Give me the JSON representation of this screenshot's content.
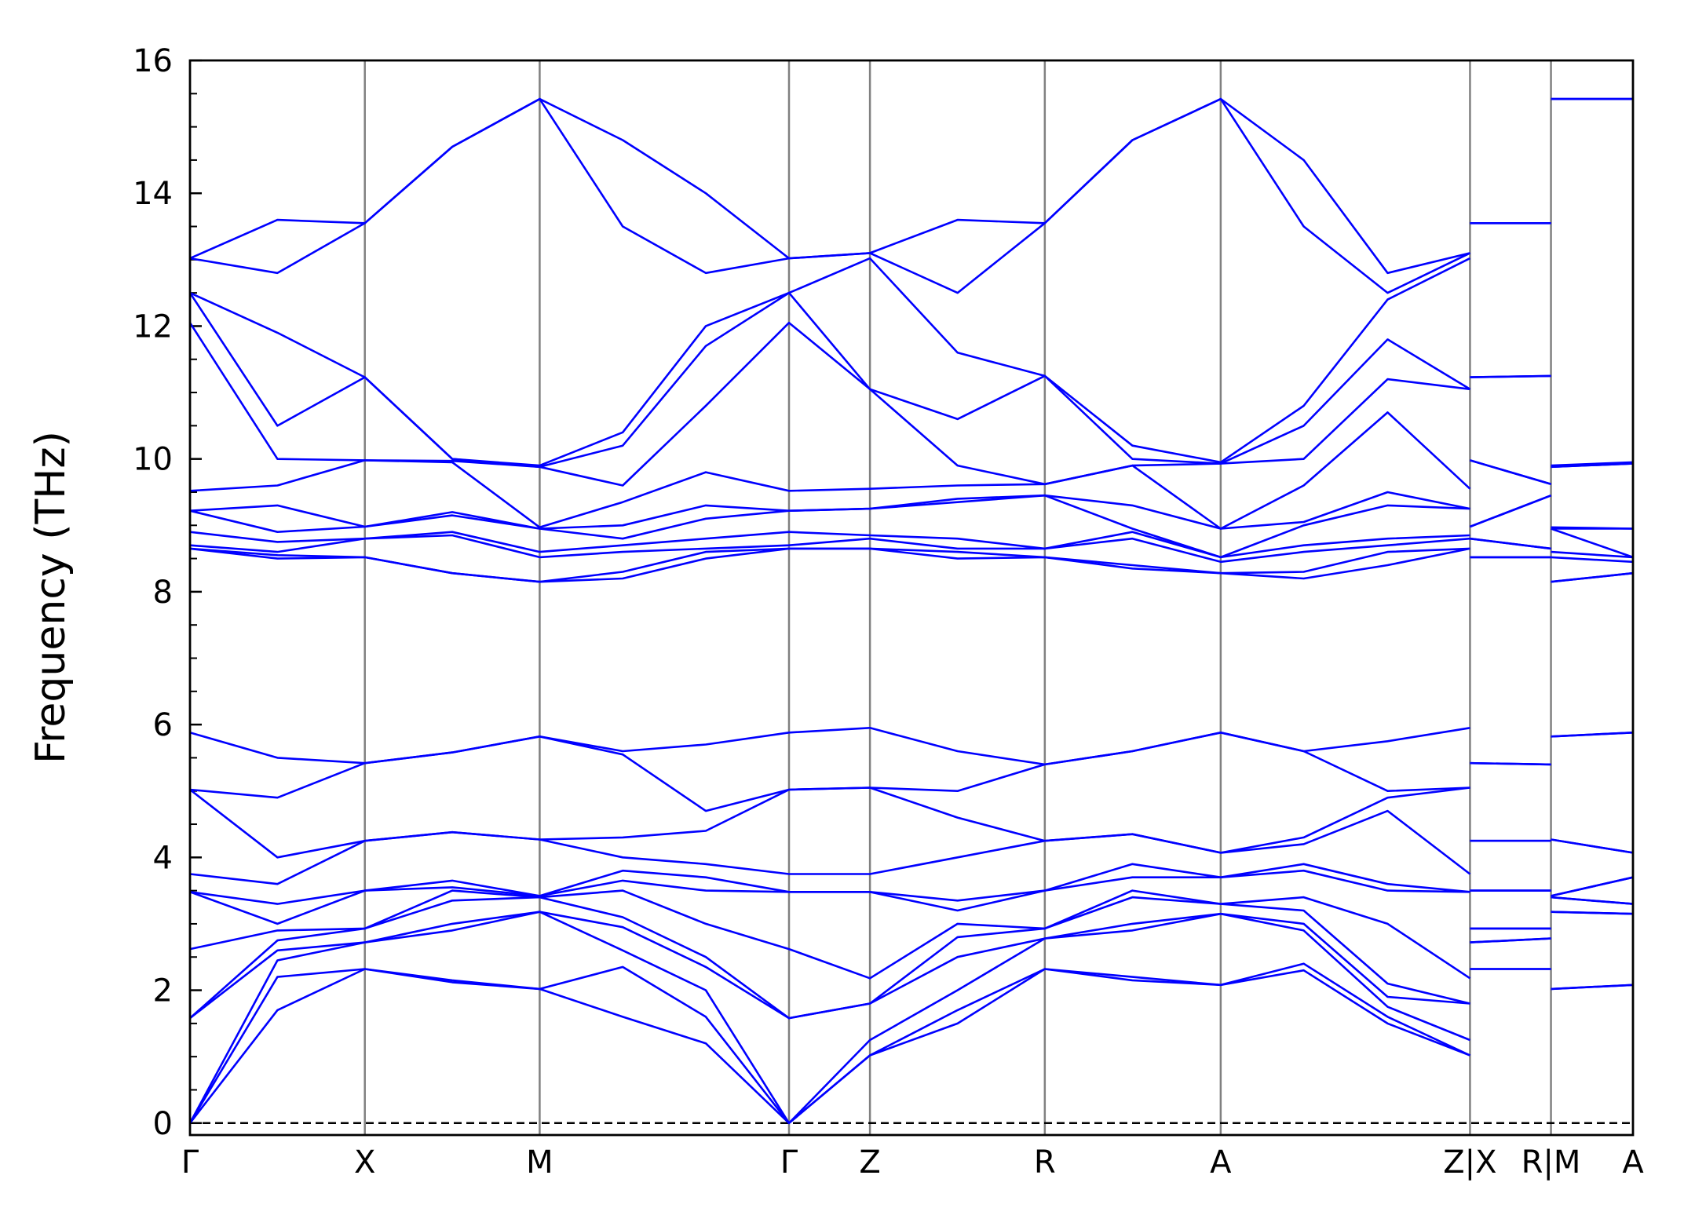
{
  "chart_data": {
    "type": "line",
    "y_label": "Frequency (THz)",
    "color": "#0000ff",
    "vlines": true,
    "vline_color": "#808080",
    "zero_line": true,
    "xlim": [
      0,
      8.253
    ],
    "ylim": [
      -0.18,
      16
    ],
    "xticks": [
      {
        "value": 0,
        "label": "Γ"
      },
      {
        "value": 1,
        "label": "X"
      },
      {
        "value": 2,
        "label": "M"
      },
      {
        "value": 3.426,
        "label": "Γ"
      },
      {
        "value": 3.889,
        "label": "Z"
      },
      {
        "value": 4.889,
        "label": "R"
      },
      {
        "value": 5.895,
        "label": "A"
      },
      {
        "value": 7.321,
        "label": "Z|X"
      },
      {
        "value": 7.784,
        "label": "R|M"
      },
      {
        "value": 8.253,
        "label": "A"
      }
    ],
    "yticks": [
      0,
      2,
      4,
      6,
      8,
      10,
      12,
      14,
      16
    ],
    "x": [
      0,
      0.5,
      1,
      1.5,
      2,
      2.475,
      2.95,
      3.426,
      3.889,
      4.39,
      4.889,
      5.39,
      5.895,
      6.37,
      6.85,
      7.321,
      null,
      7.321,
      7.784,
      null,
      7.784,
      8.253
    ],
    "series": [
      {
        "values": [
          0,
          1.7,
          2.32,
          2.12,
          2.02,
          1.6,
          1.2,
          0,
          1.02,
          1.5,
          2.32,
          2.15,
          2.08,
          2.3,
          1.5,
          1.02,
          null,
          2.32,
          2.32,
          null,
          2.02,
          2.08
        ]
      },
      {
        "values": [
          0,
          2.2,
          2.32,
          2.15,
          2.02,
          2.35,
          1.6,
          0,
          1.02,
          1.7,
          2.32,
          2.2,
          2.08,
          2.4,
          1.6,
          1.02,
          null,
          2.32,
          2.32,
          null,
          2.02,
          2.08
        ]
      },
      {
        "values": [
          0,
          2.45,
          2.72,
          2.9,
          3.18,
          2.6,
          2.0,
          0,
          1.25,
          2.0,
          2.78,
          2.9,
          3.15,
          2.9,
          1.75,
          1.25,
          null,
          2.72,
          2.78,
          null,
          3.18,
          3.15
        ]
      },
      {
        "values": [
          1.58,
          2.6,
          2.72,
          3.0,
          3.18,
          2.95,
          2.35,
          1.58,
          1.8,
          2.5,
          2.78,
          3.0,
          3.15,
          3.0,
          1.9,
          1.8,
          null,
          2.72,
          2.78,
          null,
          3.18,
          3.15
        ]
      },
      {
        "values": [
          1.58,
          2.75,
          2.93,
          3.35,
          3.4,
          3.1,
          2.5,
          1.58,
          1.8,
          2.8,
          2.93,
          3.4,
          3.3,
          3.2,
          2.1,
          1.8,
          null,
          2.93,
          2.93,
          null,
          3.4,
          3.3
        ]
      },
      {
        "values": [
          2.62,
          2.9,
          2.93,
          3.5,
          3.4,
          3.5,
          3.0,
          2.62,
          2.18,
          3.0,
          2.93,
          3.5,
          3.3,
          3.4,
          3.0,
          2.18,
          null,
          2.93,
          2.93,
          null,
          3.4,
          3.3
        ]
      },
      {
        "values": [
          3.48,
          3.0,
          3.5,
          3.55,
          3.42,
          3.65,
          3.5,
          3.48,
          3.48,
          3.2,
          3.5,
          3.7,
          3.7,
          3.8,
          3.5,
          3.48,
          null,
          3.5,
          3.5,
          null,
          3.42,
          3.7
        ]
      },
      {
        "values": [
          3.48,
          3.3,
          3.5,
          3.65,
          3.42,
          3.8,
          3.7,
          3.48,
          3.48,
          3.35,
          3.5,
          3.9,
          3.7,
          3.9,
          3.6,
          3.48,
          null,
          3.5,
          3.5,
          null,
          3.42,
          3.7
        ]
      },
      {
        "values": [
          3.75,
          3.6,
          4.25,
          4.38,
          4.27,
          4.0,
          3.9,
          3.75,
          3.75,
          4.0,
          4.25,
          4.35,
          4.07,
          4.2,
          4.7,
          3.75,
          null,
          4.25,
          4.25,
          null,
          4.27,
          4.07
        ]
      },
      {
        "values": [
          5.02,
          4.0,
          4.25,
          4.38,
          4.27,
          4.3,
          4.4,
          5.02,
          5.05,
          4.6,
          4.25,
          4.35,
          4.07,
          4.3,
          4.9,
          5.05,
          null,
          4.25,
          4.25,
          null,
          4.27,
          4.07
        ]
      },
      {
        "values": [
          5.02,
          4.9,
          5.42,
          5.58,
          5.82,
          5.55,
          4.7,
          5.02,
          5.05,
          5.0,
          5.4,
          5.6,
          5.88,
          5.6,
          5.0,
          5.05,
          null,
          5.42,
          5.4,
          null,
          5.82,
          5.88
        ]
      },
      {
        "values": [
          5.88,
          5.5,
          5.42,
          5.58,
          5.82,
          5.6,
          5.7,
          5.88,
          5.95,
          5.6,
          5.4,
          5.6,
          5.88,
          5.6,
          5.75,
          5.95,
          null,
          5.42,
          5.4,
          null,
          5.82,
          5.88
        ]
      },
      {
        "values": [
          8.65,
          8.5,
          8.52,
          8.28,
          8.15,
          8.2,
          8.5,
          8.65,
          8.65,
          8.5,
          8.52,
          8.35,
          8.28,
          8.2,
          8.4,
          8.65,
          null,
          8.52,
          8.52,
          null,
          8.15,
          8.28
        ]
      },
      {
        "values": [
          8.65,
          8.55,
          8.52,
          8.28,
          8.15,
          8.3,
          8.6,
          8.65,
          8.65,
          8.6,
          8.52,
          8.4,
          8.28,
          8.3,
          8.6,
          8.65,
          null,
          8.52,
          8.52,
          null,
          8.15,
          8.28
        ]
      },
      {
        "values": [
          8.7,
          8.6,
          8.8,
          8.85,
          8.52,
          8.6,
          8.65,
          8.7,
          8.8,
          8.65,
          8.65,
          8.8,
          8.45,
          8.6,
          8.7,
          8.8,
          null,
          8.8,
          8.65,
          null,
          8.52,
          8.45
        ]
      },
      {
        "values": [
          8.9,
          8.75,
          8.8,
          8.9,
          8.6,
          8.7,
          8.8,
          8.9,
          8.85,
          8.8,
          8.65,
          8.9,
          8.52,
          8.7,
          8.8,
          8.85,
          null,
          8.8,
          8.65,
          null,
          8.6,
          8.52
        ]
      },
      {
        "values": [
          9.22,
          8.9,
          8.98,
          9.15,
          8.95,
          8.8,
          9.1,
          9.22,
          9.25,
          9.35,
          9.45,
          8.95,
          8.52,
          9.0,
          9.3,
          9.25,
          null,
          8.98,
          9.45,
          null,
          8.95,
          8.52
        ]
      },
      {
        "values": [
          9.22,
          9.3,
          8.98,
          9.2,
          8.95,
          9.0,
          9.3,
          9.22,
          9.25,
          9.4,
          9.45,
          9.3,
          8.95,
          9.05,
          9.5,
          9.25,
          null,
          8.98,
          9.45,
          null,
          8.95,
          8.95
        ]
      },
      {
        "values": [
          9.52,
          9.6,
          9.98,
          9.95,
          8.97,
          9.35,
          9.8,
          9.52,
          9.55,
          9.6,
          9.62,
          9.9,
          8.95,
          9.6,
          10.7,
          9.55,
          null,
          9.98,
          9.62,
          null,
          8.97,
          8.95
        ]
      },
      {
        "values": [
          12.05,
          10.0,
          9.98,
          9.97,
          9.88,
          9.6,
          10.8,
          12.05,
          11.05,
          9.9,
          9.62,
          9.9,
          9.93,
          10.0,
          11.2,
          11.05,
          null,
          9.98,
          9.62,
          null,
          9.88,
          9.93
        ]
      },
      {
        "values": [
          12.5,
          10.5,
          11.23,
          10.0,
          9.88,
          10.2,
          11.7,
          12.5,
          11.05,
          10.6,
          11.25,
          10.0,
          9.93,
          10.5,
          11.8,
          11.05,
          null,
          11.23,
          11.25,
          null,
          9.88,
          9.93
        ]
      },
      {
        "values": [
          12.5,
          11.9,
          11.23,
          10.0,
          9.9,
          10.4,
          12.0,
          12.5,
          13.02,
          11.6,
          11.25,
          10.2,
          9.95,
          10.8,
          12.4,
          13.02,
          null,
          11.23,
          11.25,
          null,
          9.9,
          9.95
        ]
      },
      {
        "values": [
          13.02,
          12.8,
          13.55,
          14.7,
          15.42,
          13.5,
          12.8,
          13.02,
          13.1,
          12.5,
          13.55,
          14.8,
          15.42,
          13.5,
          12.5,
          13.1,
          null,
          13.55,
          13.55,
          null,
          15.42,
          15.42
        ]
      },
      {
        "values": [
          13.02,
          13.6,
          13.55,
          14.7,
          15.42,
          14.8,
          14.0,
          13.02,
          13.1,
          13.6,
          13.55,
          14.8,
          15.42,
          14.5,
          12.8,
          13.1,
          null,
          13.55,
          13.55,
          null,
          15.42,
          15.42
        ]
      }
    ]
  }
}
